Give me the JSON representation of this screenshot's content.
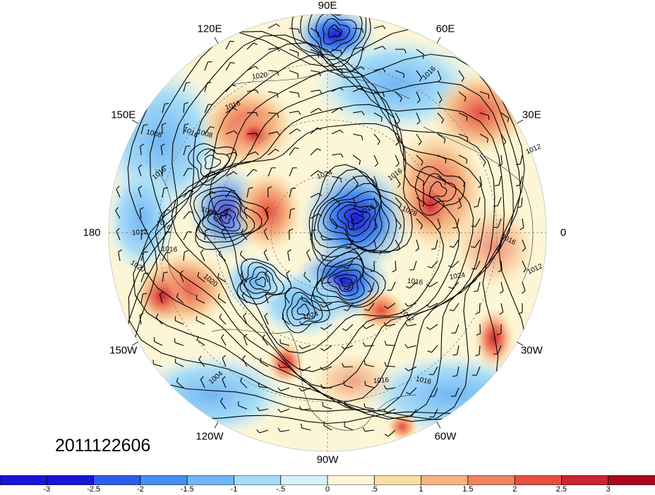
{
  "map": {
    "projection": "north-polar-stereographic",
    "date_stamp": "2011122606",
    "longitude_labels": [
      {
        "id": "90e",
        "text": "90E",
        "lon": 90
      },
      {
        "id": "60e",
        "text": "60E",
        "lon": 60
      },
      {
        "id": "120e",
        "text": "120E",
        "lon": 120
      },
      {
        "id": "30e",
        "text": "30E",
        "lon": 30
      },
      {
        "id": "150e",
        "text": "150E",
        "lon": 150
      },
      {
        "id": "0",
        "text": "0",
        "lon": 0
      },
      {
        "id": "180",
        "text": "180",
        "lon": 180
      },
      {
        "id": "30w",
        "text": "30W",
        "lon": -30
      },
      {
        "id": "150w",
        "text": "150W",
        "lon": -150
      },
      {
        "id": "60w",
        "text": "60W",
        "lon": -60
      },
      {
        "id": "120w",
        "text": "120W",
        "lon": -120
      },
      {
        "id": "90w",
        "text": "90W",
        "lon": -90
      }
    ],
    "isobar_labels": [
      "1016",
      "1020",
      "1016",
      "1012",
      "1008",
      "1016",
      "1012",
      "1016",
      "1024",
      "1004",
      "1000",
      "1016",
      "1020",
      "1024",
      "1028",
      "1016",
      "1016",
      "1012",
      "1024",
      "1016",
      "1012",
      "1016",
      "1004",
      "1016",
      "1020",
      "1016",
      "1008",
      "1016"
    ],
    "contour_line_color": "#000000",
    "features": {
      "anomaly_field": "shaded",
      "isobars": "black contours",
      "wind_barbs": true,
      "coastlines": true,
      "lat_lon_grid": "dashed"
    }
  },
  "colorbar": {
    "levels": [
      "-3",
      "-2.5",
      "-2",
      "-1.5",
      "-1",
      "-.5",
      "0",
      ".5",
      "1",
      "1.5",
      "2",
      "2.5",
      "3"
    ],
    "colors": [
      "#1a14d8",
      "#2e5ee8",
      "#4a8ff0",
      "#72b6f4",
      "#a6dcf7",
      "#d6f1fa",
      "#fdf6d6",
      "#f9dfa6",
      "#f6b482",
      "#ef8462",
      "#e4503f",
      "#cc2433",
      "#a8091f"
    ]
  }
}
